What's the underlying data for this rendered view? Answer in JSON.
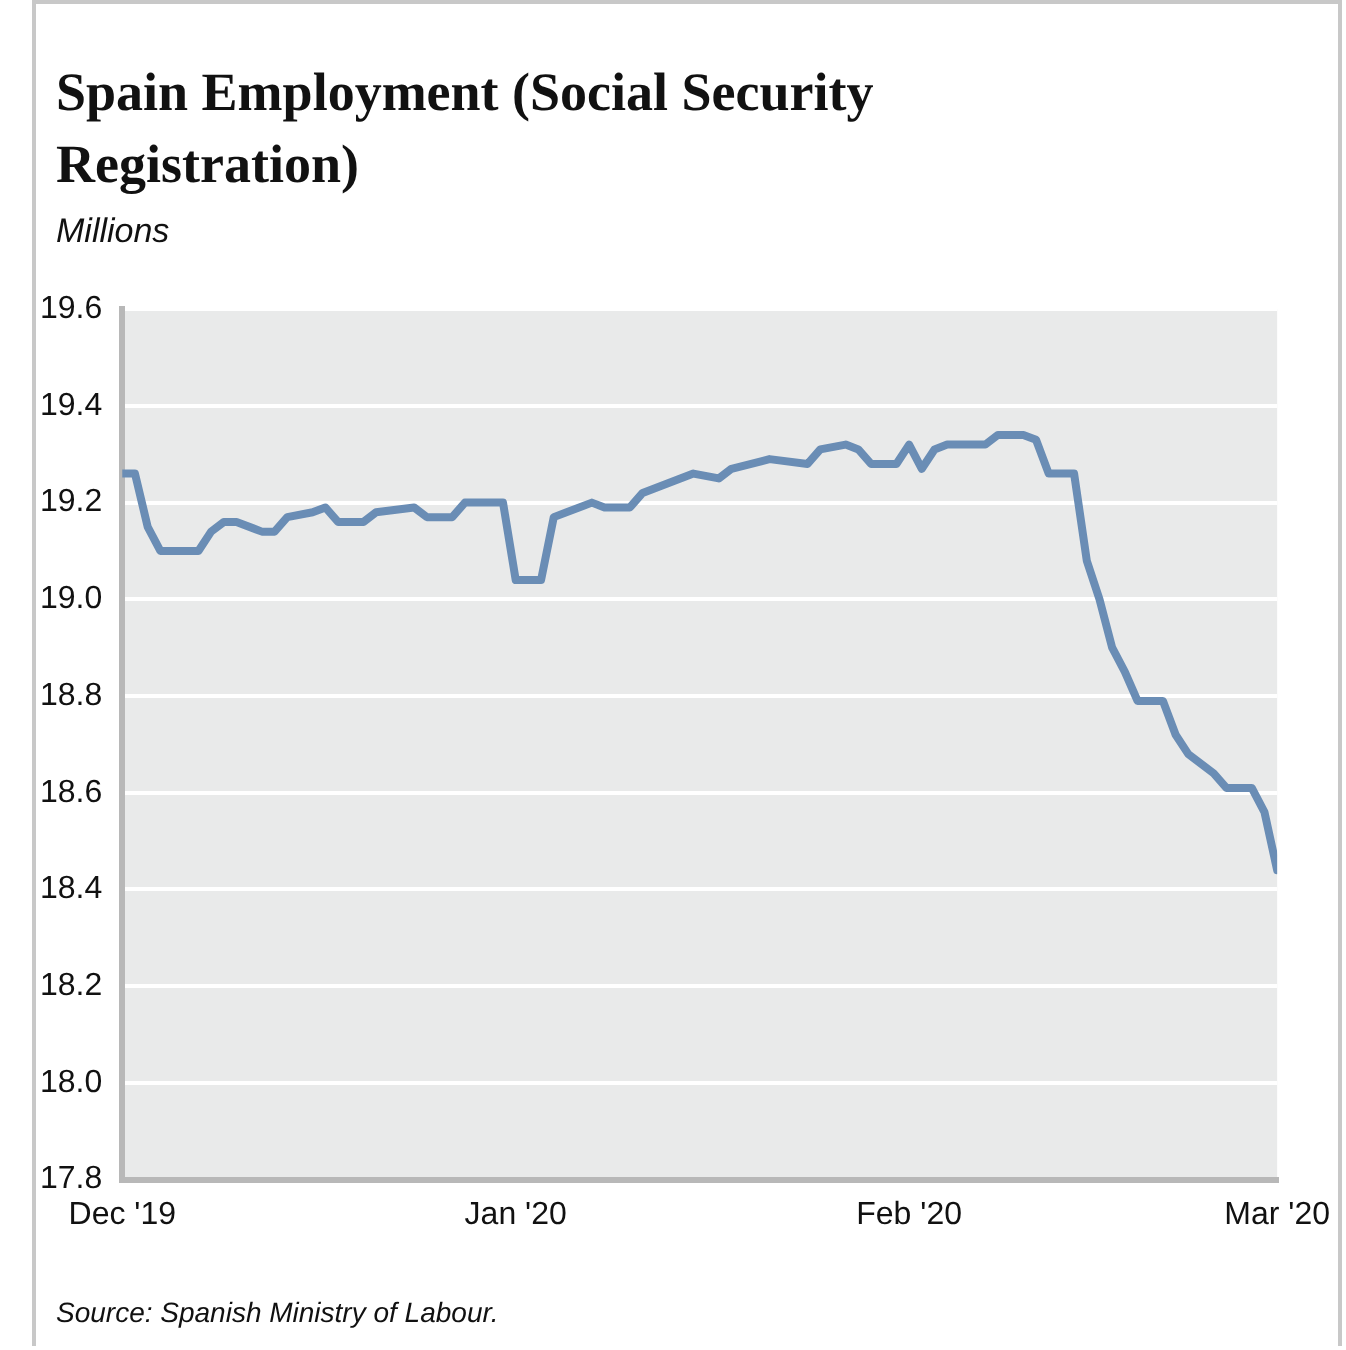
{
  "chart_data": {
    "type": "line",
    "title": "Spain Employment (Social Security Registration)",
    "ylabel": "Millions",
    "annotations": [
      "Source: Spanish Ministry of Labour."
    ],
    "x": [
      "2019-12-01",
      "2019-12-02",
      "2019-12-03",
      "2019-12-04",
      "2019-12-07",
      "2019-12-08",
      "2019-12-09",
      "2019-12-10",
      "2019-12-12",
      "2019-12-13",
      "2019-12-14",
      "2019-12-16",
      "2019-12-17",
      "2019-12-18",
      "2019-12-20",
      "2019-12-21",
      "2019-12-24",
      "2019-12-25",
      "2019-12-27",
      "2019-12-28",
      "2019-12-31",
      "2020-01-01",
      "2020-01-03",
      "2020-01-04",
      "2020-01-07",
      "2020-01-08",
      "2020-01-10",
      "2020-01-11",
      "2020-01-13",
      "2020-01-15",
      "2020-01-17",
      "2020-01-18",
      "2020-01-21",
      "2020-01-24",
      "2020-01-25",
      "2020-01-27",
      "2020-01-28",
      "2020-01-29",
      "2020-01-31",
      "2020-02-01",
      "2020-02-02",
      "2020-02-03",
      "2020-02-04",
      "2020-02-07",
      "2020-02-08",
      "2020-02-10",
      "2020-02-11",
      "2020-02-12",
      "2020-02-14",
      "2020-02-15",
      "2020-02-16",
      "2020-02-17",
      "2020-02-18",
      "2020-02-19",
      "2020-02-21",
      "2020-02-22",
      "2020-02-23",
      "2020-02-25",
      "2020-02-26",
      "2020-02-28",
      "2020-02-29",
      "2020-03-01"
    ],
    "series": [
      {
        "color": "#6a8db5",
        "values": [
          19.26,
          19.26,
          19.15,
          19.1,
          19.1,
          19.14,
          19.16,
          19.16,
          19.14,
          19.14,
          19.17,
          19.18,
          19.19,
          19.16,
          19.16,
          19.18,
          19.19,
          19.17,
          19.17,
          19.2,
          19.2,
          19.04,
          19.04,
          19.17,
          19.2,
          19.19,
          19.19,
          19.22,
          19.24,
          19.26,
          19.25,
          19.27,
          19.29,
          19.28,
          19.31,
          19.32,
          19.31,
          19.28,
          19.28,
          19.32,
          19.27,
          19.31,
          19.32,
          19.32,
          19.34,
          19.34,
          19.33,
          19.26,
          19.26,
          19.08,
          19.0,
          18.9,
          18.85,
          18.79,
          18.79,
          18.72,
          18.68,
          18.64,
          18.61,
          18.61,
          18.56,
          18.44
        ]
      }
    ],
    "xlim": [
      "2019-12-01",
      "2020-03-01"
    ],
    "xticks": [
      {
        "value": "2019-12-01",
        "label": "Dec '19"
      },
      {
        "value": "2020-01-01",
        "label": "Jan '20"
      },
      {
        "value": "2020-02-01",
        "label": "Feb '20"
      },
      {
        "value": "2020-03-01",
        "label": "Mar '20"
      }
    ],
    "ylim": [
      17.8,
      19.6
    ],
    "yticks": [
      {
        "value": 17.8,
        "label": "17.8"
      },
      {
        "value": 18.0,
        "label": "18.0"
      },
      {
        "value": 18.2,
        "label": "18.2"
      },
      {
        "value": 18.4,
        "label": "18.4"
      },
      {
        "value": 18.6,
        "label": "18.6"
      },
      {
        "value": 18.8,
        "label": "18.8"
      },
      {
        "value": 19.0,
        "label": "19.0"
      },
      {
        "value": 19.2,
        "label": "19.2"
      },
      {
        "value": 19.4,
        "label": "19.4"
      },
      {
        "value": 19.6,
        "label": "19.6"
      }
    ],
    "grid": "y",
    "marker": "none",
    "line_style": "solid"
  }
}
